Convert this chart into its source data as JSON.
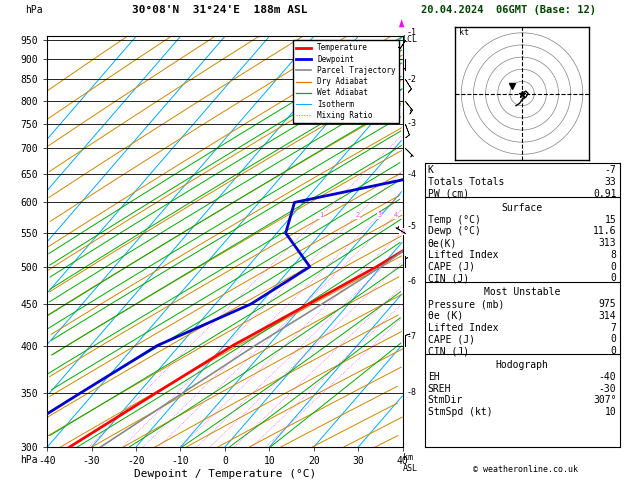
{
  "title_left": "30°08'N  31°24'E  188m ASL",
  "title_date": "20.04.2024  06GMT (Base: 12)",
  "xlabel": "Dewpoint / Temperature (°C)",
  "pressure_ticks": [
    300,
    350,
    400,
    450,
    500,
    550,
    600,
    650,
    700,
    750,
    800,
    850,
    900,
    950
  ],
  "pmin": 300,
  "pmax": 960,
  "temp_min": -40,
  "temp_max": 40,
  "skew_factor": 1.0,
  "temp_profile": {
    "pressure": [
      960,
      925,
      900,
      850,
      800,
      750,
      700,
      650,
      600,
      550,
      500,
      450,
      400,
      350,
      300
    ],
    "temp": [
      15,
      15.5,
      16,
      17,
      18,
      17,
      15,
      13,
      10,
      5,
      -1,
      -9,
      -18,
      -26,
      -35
    ]
  },
  "dewpoint_profile": {
    "pressure": [
      960,
      925,
      900,
      850,
      800,
      750,
      700,
      650,
      600,
      550,
      500,
      450,
      400,
      350,
      300
    ],
    "dewpoint": [
      11.6,
      11,
      10,
      8,
      -4,
      -7,
      -8,
      -7,
      -32,
      -28,
      -16,
      -22,
      -35,
      -43,
      -52
    ]
  },
  "parcel_trajectory": {
    "pressure": [
      960,
      925,
      900,
      850,
      800,
      750,
      700,
      650,
      600,
      550,
      500,
      450,
      400,
      350,
      300
    ],
    "temp": [
      15.8,
      15.5,
      15.2,
      14.5,
      14,
      13,
      12,
      10,
      8,
      4,
      0,
      -6,
      -13,
      -20,
      -28
    ]
  },
  "surface_data_labels": [
    "Temp (°C)",
    "Dewp (°C)",
    "θe(K)",
    "Lifted Index",
    "CAPE (J)",
    "CIN (J)"
  ],
  "surface_data_values": [
    "15",
    "11.6",
    "313",
    "8",
    "0",
    "0"
  ],
  "most_unstable_labels": [
    "Pressure (mb)",
    "θe (K)",
    "Lifted Index",
    "CAPE (J)",
    "CIN (J)"
  ],
  "most_unstable_values": [
    "975",
    "314",
    "7",
    "0",
    "0"
  ],
  "indices_labels": [
    "K",
    "Totals Totals",
    "PW (cm)"
  ],
  "indices_values": [
    "-7",
    "33",
    "0.91"
  ],
  "hodograph_labels": [
    "EH",
    "SREH",
    "StmDir",
    "StmSpd (kt)"
  ],
  "hodograph_values": [
    "-40",
    "-30",
    "307°",
    "10"
  ],
  "mixing_ratio_lines": [
    1,
    2,
    3,
    4,
    6,
    8,
    10,
    15,
    20,
    25
  ],
  "km_labels": [
    "1",
    "2",
    "3",
    "4",
    "5",
    "6",
    "7",
    "8"
  ],
  "km_pressures": [
    972,
    850,
    750,
    650,
    560,
    480,
    410,
    350
  ],
  "lcl_pressure": 952,
  "colors": {
    "temperature": "#ff0000",
    "dewpoint": "#0000cc",
    "parcel": "#888888",
    "dry_adiabat": "#cc8800",
    "wet_adiabat": "#00aa00",
    "isotherm": "#00aaff",
    "mixing_ratio": "#ff44ff",
    "background": "#ffffff",
    "grid": "#000000"
  }
}
